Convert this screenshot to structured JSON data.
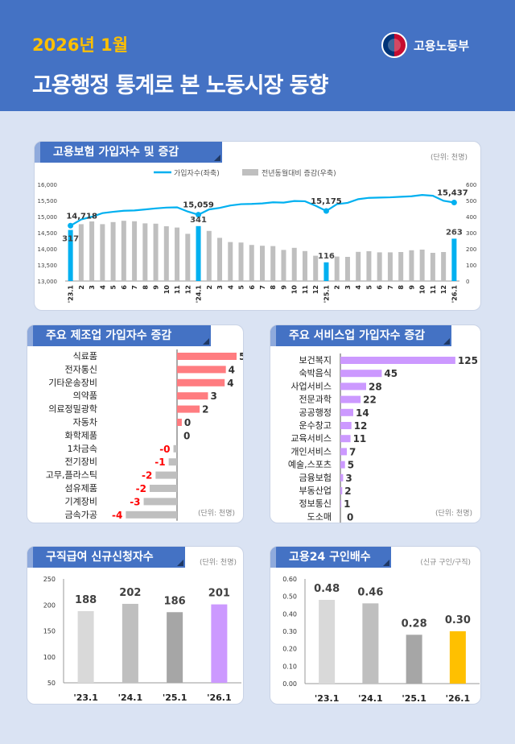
{
  "header": {
    "period": "2026년 1월",
    "title": "고용행정 통계로 본 노동시장 동향",
    "ministry": "고용노동부"
  },
  "colors": {
    "header": "#4472c4",
    "highlight": "#00b0f0",
    "bar_gray": "#bfbfbf",
    "manufacturing_pos": "#ff7c80",
    "manufacturing_neg": "#bfbfbf",
    "neg_label": "#ff0000",
    "services": "#cc99ff",
    "claims_2026": "#cc99ff",
    "ratio_2026": "#ffc000"
  },
  "chart_data": [
    {
      "id": "insured",
      "type": "bar+line",
      "title": "고용보험 가입자수 및 증감",
      "unit": "(단위: 천명)",
      "legend": [
        "가입자수(좌축)",
        "전년동월대비 증감(우축)"
      ],
      "legend_position": "top",
      "categories": [
        "'23.1",
        "2",
        "3",
        "4",
        "5",
        "6",
        "7",
        "8",
        "9",
        "10",
        "11",
        "12",
        "'24.1",
        "2",
        "3",
        "4",
        "5",
        "6",
        "7",
        "8",
        "9",
        "10",
        "11",
        "12",
        "'25.1",
        "2",
        "3",
        "4",
        "5",
        "6",
        "7",
        "8",
        "9",
        "10",
        "11",
        "12",
        "'26.1"
      ],
      "ylim_left": [
        13000,
        16000
      ],
      "yticks_left": [
        "13,000",
        "13,500",
        "14,000",
        "14,500",
        "15,000",
        "15,500",
        "16,000"
      ],
      "ylim_right": [
        0,
        600
      ],
      "yticks_right": [
        "0",
        "100",
        "200",
        "300",
        "400",
        "500",
        "600"
      ],
      "line": {
        "name": "가입자수(좌축)",
        "values": [
          14718,
          14912,
          14994,
          15108,
          15149,
          15181,
          15190,
          15222,
          15255,
          15280,
          15288,
          15157,
          15059,
          15222,
          15271,
          15345,
          15386,
          15394,
          15410,
          15443,
          15435,
          15484,
          15476,
          15337,
          15175,
          15386,
          15427,
          15541,
          15582,
          15590,
          15598,
          15615,
          15631,
          15672,
          15647,
          15492,
          15437
        ]
      },
      "bars": {
        "name": "전년동월대비 증감(우축)",
        "values": [
          317,
          353,
          370,
          353,
          366,
          374,
          371,
          358,
          356,
          340,
          332,
          293,
          341,
          311,
          268,
          242,
          239,
          224,
          219,
          217,
          193,
          206,
          186,
          157,
          116,
          152,
          150,
          181,
          185,
          178,
          178,
          180,
          191,
          195,
          175,
          180,
          263
        ]
      },
      "line_labels": [
        "14,718",
        "15,059",
        "15,175",
        "15,437"
      ],
      "bar_labels": [
        "317",
        "341",
        "116",
        "263"
      ]
    },
    {
      "id": "manufacturing",
      "type": "hbar",
      "title": "주요 제조업 가입자수 증감",
      "unit": "(단위: 천명)",
      "categories": [
        "식료품",
        "전자통신",
        "기타운송장비",
        "의약품",
        "의료정밀광학",
        "자동차",
        "화학제품",
        "1차금속",
        "전기장비",
        "고무,플라스틱",
        "섬유제품",
        "기계장비",
        "금속가공"
      ],
      "values": [
        5.0,
        4.1,
        4.0,
        2.6,
        1.9,
        0.4,
        0.0,
        -0.3,
        -0.7,
        -1.8,
        -2.3,
        -2.8,
        -4.3
      ],
      "labels": [
        "5",
        "4",
        "4",
        "3",
        "2",
        "0",
        "0",
        "-0",
        "-1",
        "-2",
        "-2",
        "-3",
        "-4"
      ]
    },
    {
      "id": "services",
      "type": "hbar",
      "title": "주요 서비스업 가입자수 증감",
      "unit": "(단위: 천명)",
      "categories": [
        "보건복지",
        "숙박음식",
        "사업서비스",
        "전문과학",
        "공공행정",
        "운수창고",
        "교육서비스",
        "개인서비스",
        "예술,스포츠",
        "금융보험",
        "부동산업",
        "정보통신",
        "도소매"
      ],
      "values": [
        125,
        45,
        28,
        22,
        14,
        12,
        11,
        7,
        5,
        3,
        2,
        1,
        0
      ],
      "labels": [
        "125",
        "45",
        "28",
        "22",
        "14",
        "12",
        "11",
        "7",
        "5",
        "3",
        "2",
        "1",
        "0"
      ]
    },
    {
      "id": "claims",
      "type": "bar",
      "title": "구직급여 신규신청자수",
      "unit": "(단위: 천명)",
      "categories": [
        "'23.1",
        "'24.1",
        "'25.1",
        "'26.1"
      ],
      "values": [
        188,
        202,
        186,
        201
      ],
      "labels": [
        "188",
        "202",
        "186",
        "201"
      ],
      "ylim": [
        50,
        250
      ],
      "yticks": [
        "50",
        "100",
        "150",
        "200",
        "250"
      ],
      "bar_colors": [
        "#d9d9d9",
        "#bfbfbf",
        "#a6a6a6",
        "#cc99ff"
      ]
    },
    {
      "id": "ratio",
      "type": "bar",
      "title": "고용24 구인배수",
      "unit": "(신규 구인/구직)",
      "categories": [
        "'23.1",
        "'24.1",
        "'25.1",
        "'26.1"
      ],
      "values": [
        0.48,
        0.46,
        0.28,
        0.3
      ],
      "labels": [
        "0.48",
        "0.46",
        "0.28",
        "0.30"
      ],
      "ylim": [
        0,
        0.6
      ],
      "yticks": [
        "0.00",
        "0.10",
        "0.20",
        "0.30",
        "0.40",
        "0.50",
        "0.60"
      ],
      "bar_colors": [
        "#d9d9d9",
        "#bfbfbf",
        "#a6a6a6",
        "#ffc000"
      ]
    }
  ]
}
